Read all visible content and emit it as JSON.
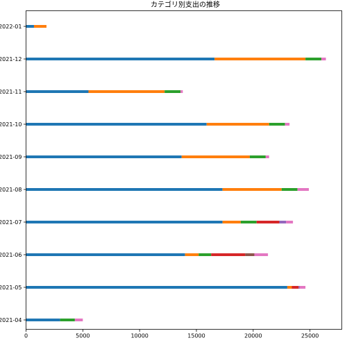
{
  "chart_data": {
    "type": "bar",
    "orientation": "horizontal",
    "stacked": true,
    "title": "カテゴリ別支出の推移",
    "xlabel": "",
    "ylabel": "",
    "xlim": [
      0,
      27800
    ],
    "xticks": [
      0,
      5000,
      10000,
      15000,
      20000,
      25000
    ],
    "grid": false,
    "categories": [
      "2021-04",
      "2021-05",
      "2021-06",
      "2021-07",
      "2021-08",
      "2021-09",
      "2021-10",
      "2021-11",
      "2021-12",
      "2022-01"
    ],
    "series": [
      {
        "color": "#1f77b4",
        "values": [
          3000,
          23000,
          14000,
          17300,
          17300,
          13700,
          15900,
          5500,
          16600,
          700
        ]
      },
      {
        "color": "#ff7f0e",
        "values": [
          0,
          400,
          1200,
          1600,
          5200,
          6000,
          5500,
          6700,
          8000,
          1100
        ]
      },
      {
        "color": "#2ca02c",
        "values": [
          1300,
          0,
          1100,
          1400,
          1400,
          1400,
          1400,
          1400,
          1400,
          0
        ]
      },
      {
        "color": "#d62728",
        "values": [
          0,
          600,
          3000,
          2000,
          0,
          0,
          0,
          0,
          0,
          0
        ]
      },
      {
        "color": "#9467bd",
        "values": [
          0,
          100,
          0,
          600,
          0,
          0,
          0,
          0,
          0,
          0
        ]
      },
      {
        "color": "#8c564b",
        "values": [
          0,
          0,
          800,
          0,
          0,
          0,
          0,
          0,
          0,
          0
        ]
      },
      {
        "color": "#e377c2",
        "values": [
          700,
          500,
          1200,
          600,
          1000,
          300,
          400,
          200,
          400,
          0
        ]
      }
    ]
  }
}
